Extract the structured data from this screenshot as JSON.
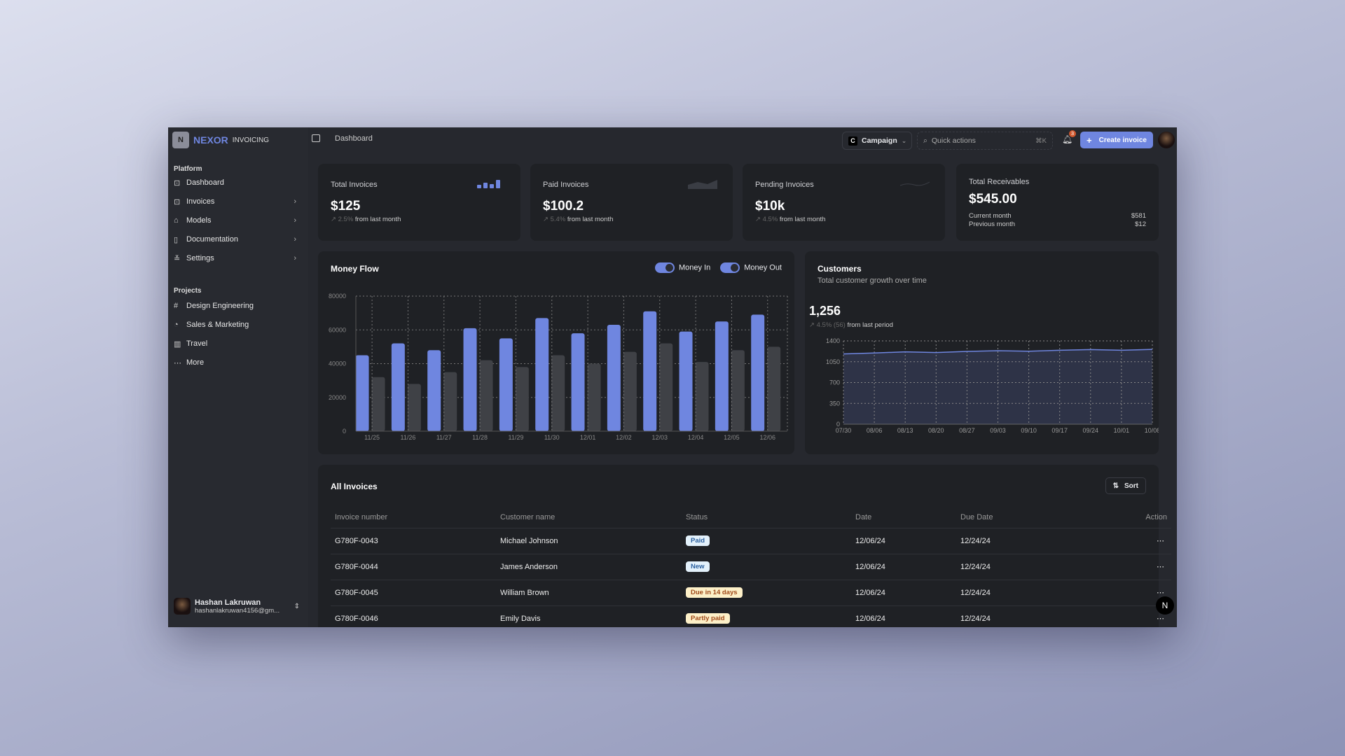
{
  "app": {
    "brand": "NEXOR",
    "brand_sub": "INVOICING",
    "logo_letter": "N"
  },
  "colors": {
    "accent": "#6f86e0",
    "money_out": "#3f4146",
    "window_bg": "#26282e",
    "card_bg": "#1f2125"
  },
  "sidebar": {
    "platform_label": "Platform",
    "platform": [
      {
        "label": "Dashboard",
        "icon": "terminal-square-icon",
        "chevron": false
      },
      {
        "label": "Invoices",
        "icon": "terminal-square-icon",
        "chevron": true
      },
      {
        "label": "Models",
        "icon": "bot-icon",
        "chevron": true
      },
      {
        "label": "Documentation",
        "icon": "book-open-icon",
        "chevron": true
      },
      {
        "label": "Settings",
        "icon": "sliders-icon",
        "chevron": true
      }
    ],
    "projects_label": "Projects",
    "projects": [
      {
        "label": "Design Engineering",
        "icon": "frame-icon"
      },
      {
        "label": "Sales & Marketing",
        "icon": "pie-chart-icon"
      },
      {
        "label": "Travel",
        "icon": "map-icon"
      },
      {
        "label": "More",
        "icon": "more-horizontal-icon"
      }
    ],
    "user": {
      "name": "Hashan Lakruwan",
      "email": "hashanlakruwan4156@gm..."
    }
  },
  "header": {
    "breadcrumb": "Dashboard",
    "workspace": "Campaign",
    "workspace_letter": "C",
    "search_placeholder": "Quick actions",
    "shortcut": "⌘K",
    "notifications": "3",
    "create_label": "Create invoice"
  },
  "stats": [
    {
      "title": "Total Invoices",
      "value": "$125",
      "change": "2.5%",
      "suffix": "from last month"
    },
    {
      "title": "Paid Invoices",
      "value": "$100.2",
      "change": "5.4%",
      "suffix": "from last month"
    },
    {
      "title": "Pending Invoices",
      "value": "$10k",
      "change": "4.5%",
      "suffix": "from last month"
    }
  ],
  "receivables": {
    "title": "Total Receivables",
    "value": "$545.00",
    "current_label": "Current month",
    "current_value": "$581",
    "previous_label": "Previous month",
    "previous_value": "$12"
  },
  "money_flow": {
    "title": "Money Flow",
    "toggle_in": "Money In",
    "toggle_out": "Money Out",
    "toggle_in_on": true,
    "toggle_out_on": true
  },
  "customers": {
    "title": "Customers",
    "subtitle": "Total customer growth over time",
    "value": "1,256",
    "change": "4.5% (56)",
    "suffix": "from last period"
  },
  "chart_data": [
    {
      "type": "bar",
      "title": "Money Flow",
      "categories": [
        "11/25",
        "11/26",
        "11/27",
        "11/28",
        "11/29",
        "11/30",
        "12/01",
        "12/02",
        "12/03",
        "12/04",
        "12/05",
        "12/06"
      ],
      "series": [
        {
          "name": "Money In",
          "color": "#6f86e0",
          "values": [
            45000,
            52000,
            48000,
            61000,
            55000,
            67000,
            58000,
            63000,
            71000,
            59000,
            65000,
            69000
          ]
        },
        {
          "name": "Money Out",
          "color": "#3f4146",
          "values": [
            32000,
            28000,
            35000,
            42000,
            38000,
            45000,
            40000,
            47000,
            52000,
            41000,
            48000,
            50000
          ]
        }
      ],
      "yticks": [
        0,
        20000,
        40000,
        60000,
        80000
      ],
      "ylim": [
        0,
        80000
      ],
      "grid": true
    },
    {
      "type": "area",
      "title": "Customers",
      "x": [
        "07/30",
        "08/06",
        "08/13",
        "08/20",
        "08/27",
        "09/03",
        "09/10",
        "09/17",
        "09/24",
        "10/01",
        "10/08"
      ],
      "values": [
        1181,
        1197,
        1216,
        1204,
        1224,
        1235,
        1227,
        1243,
        1254,
        1243,
        1258
      ],
      "yticks": [
        0,
        350,
        700,
        1050,
        1400
      ],
      "ylim": [
        0,
        1400
      ],
      "grid": true,
      "color": "#6f86e0"
    }
  ],
  "invoices": {
    "title": "All Invoices",
    "sort_label": "Sort",
    "columns": [
      "Invoice number",
      "Customer name",
      "Status",
      "Date",
      "Due Date",
      "Action"
    ],
    "rows": [
      {
        "number": "G780F-0043",
        "customer": "Michael Johnson",
        "status": "Paid",
        "status_type": "info",
        "date": "12/06/24",
        "due": "12/24/24"
      },
      {
        "number": "G780F-0044",
        "customer": "James Anderson",
        "status": "New",
        "status_type": "info",
        "date": "12/06/24",
        "due": "12/24/24"
      },
      {
        "number": "G780F-0045",
        "customer": "William Brown",
        "status": "Due in 14 days",
        "status_type": "warn",
        "date": "12/06/24",
        "due": "12/24/24"
      },
      {
        "number": "G780F-0046",
        "customer": "Emily Davis",
        "status": "Partly paid",
        "status_type": "warn",
        "date": "12/06/24",
        "due": "12/24/24"
      }
    ]
  }
}
